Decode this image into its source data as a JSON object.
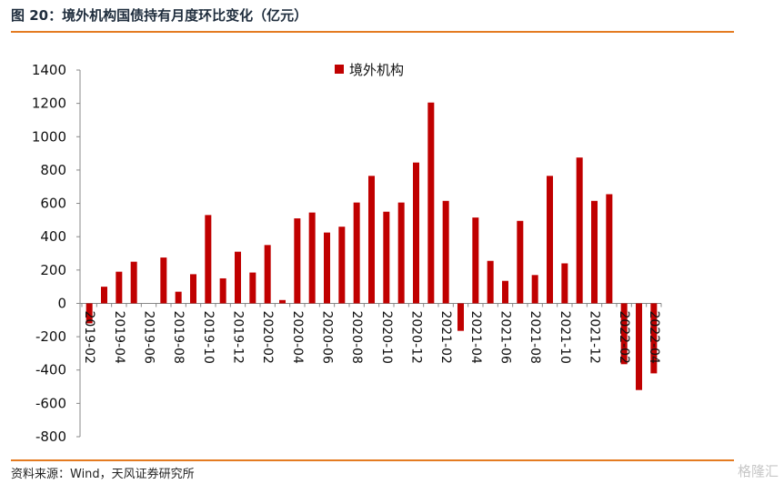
{
  "header": {
    "title": "图 20：境外机构国债持有月度环比变化（亿元）"
  },
  "footer": {
    "source": "资料来源：Wind，天风证券研究所",
    "watermark": "格隆汇"
  },
  "colors": {
    "bar": "#c00000",
    "rule": "#e47b21"
  },
  "chart_data": {
    "type": "bar",
    "title": "",
    "xlabel": "",
    "ylabel": "",
    "ylim": [
      -800,
      1400
    ],
    "yticks": [
      -800,
      -600,
      -400,
      -200,
      0,
      200,
      400,
      600,
      800,
      1000,
      1200,
      1400
    ],
    "legend": "top-center",
    "grid": false,
    "categories": [
      "2019-02",
      "2019-03",
      "2019-04",
      "2019-05",
      "2019-06",
      "2019-07",
      "2019-08",
      "2019-09",
      "2019-10",
      "2019-11",
      "2019-12",
      "2020-01",
      "2020-02",
      "2020-03",
      "2020-04",
      "2020-05",
      "2020-06",
      "2020-07",
      "2020-08",
      "2020-09",
      "2020-10",
      "2020-11",
      "2020-12",
      "2021-01",
      "2021-02",
      "2021-03",
      "2021-04",
      "2021-05",
      "2021-06",
      "2021-07",
      "2021-08",
      "2021-09",
      "2021-10",
      "2021-11",
      "2021-12",
      "2022-01",
      "2022-02",
      "2022-03",
      "2022-04"
    ],
    "xtick_labels": [
      "2019-02",
      "2019-04",
      "2019-06",
      "2019-08",
      "2019-10",
      "2019-12",
      "2020-02",
      "2020-04",
      "2020-06",
      "2020-08",
      "2020-10",
      "2020-12",
      "2021-02",
      "2021-04",
      "2021-06",
      "2021-08",
      "2021-10",
      "2021-12",
      "2022-02",
      "2022-04"
    ],
    "series": [
      {
        "name": "境外机构",
        "values": [
          -120,
          100,
          190,
          250,
          0,
          275,
          70,
          175,
          530,
          150,
          310,
          185,
          350,
          20,
          510,
          545,
          425,
          460,
          605,
          765,
          550,
          605,
          845,
          1205,
          615,
          -165,
          515,
          255,
          135,
          495,
          170,
          765,
          240,
          875,
          615,
          655,
          -365,
          -520,
          -420
        ]
      }
    ]
  }
}
